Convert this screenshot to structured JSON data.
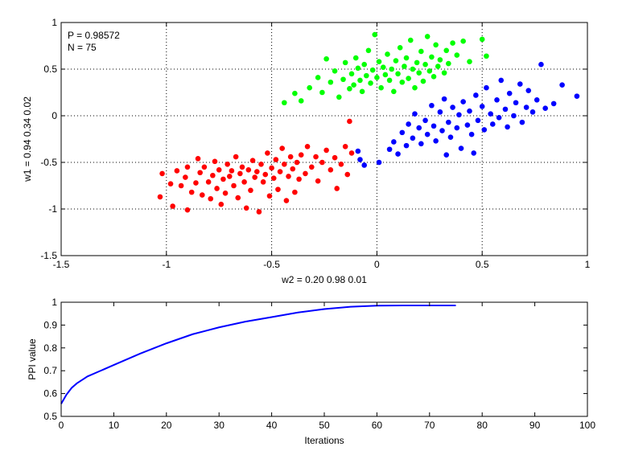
{
  "chart_data": [
    {
      "type": "scatter",
      "title": "",
      "xlabel": "w2 = 0.20  0.98  0.01",
      "ylabel": "w1 = 0.94  0.34  0.02",
      "xlim": [
        -1.5,
        1
      ],
      "ylim": [
        -1.5,
        1
      ],
      "xticks": [
        -1.5,
        -1,
        -0.5,
        0,
        0.5,
        1
      ],
      "yticks": [
        -1.5,
        -1,
        -0.5,
        0,
        0.5,
        1
      ],
      "xtick_labels": [
        "-1.5",
        "-1",
        "-0.5",
        "0",
        "0.5",
        "1"
      ],
      "ytick_labels": [
        "-1.5",
        "-1",
        "-0.5",
        "0",
        "0.5",
        "1"
      ],
      "grid": true,
      "annotations": [
        "P = 0.98572",
        "N = 75"
      ],
      "series": [
        {
          "color": "#ff0000",
          "points": [
            [
              -1.03,
              -0.87
            ],
            [
              -1.02,
              -0.62
            ],
            [
              -0.98,
              -0.73
            ],
            [
              -0.97,
              -0.97
            ],
            [
              -0.95,
              -0.59
            ],
            [
              -0.93,
              -0.75
            ],
            [
              -0.91,
              -0.66
            ],
            [
              -0.9,
              -1.01
            ],
            [
              -0.9,
              -0.55
            ],
            [
              -0.88,
              -0.82
            ],
            [
              -0.86,
              -0.72
            ],
            [
              -0.85,
              -0.46
            ],
            [
              -0.84,
              -0.61
            ],
            [
              -0.83,
              -0.85
            ],
            [
              -0.82,
              -0.55
            ],
            [
              -0.8,
              -0.71
            ],
            [
              -0.79,
              -0.89
            ],
            [
              -0.78,
              -0.64
            ],
            [
              -0.77,
              -0.49
            ],
            [
              -0.76,
              -0.78
            ],
            [
              -0.75,
              -0.58
            ],
            [
              -0.74,
              -0.95
            ],
            [
              -0.73,
              -0.68
            ],
            [
              -0.72,
              -0.83
            ],
            [
              -0.71,
              -0.52
            ],
            [
              -0.7,
              -0.65
            ],
            [
              -0.69,
              -0.59
            ],
            [
              -0.68,
              -0.75
            ],
            [
              -0.67,
              -0.44
            ],
            [
              -0.66,
              -0.88
            ],
            [
              -0.65,
              -0.62
            ],
            [
              -0.64,
              -0.55
            ],
            [
              -0.63,
              -0.71
            ],
            [
              -0.62,
              -0.99
            ],
            [
              -0.61,
              -0.58
            ],
            [
              -0.6,
              -0.8
            ],
            [
              -0.59,
              -0.48
            ],
            [
              -0.58,
              -0.66
            ],
            [
              -0.57,
              -0.6
            ],
            [
              -0.56,
              -1.03
            ],
            [
              -0.55,
              -0.52
            ],
            [
              -0.54,
              -0.71
            ],
            [
              -0.53,
              -0.63
            ],
            [
              -0.52,
              -0.4
            ],
            [
              -0.51,
              -0.86
            ],
            [
              -0.5,
              -0.56
            ],
            [
              -0.49,
              -0.67
            ],
            [
              -0.48,
              -0.47
            ],
            [
              -0.47,
              -0.79
            ],
            [
              -0.46,
              -0.6
            ],
            [
              -0.45,
              -0.35
            ],
            [
              -0.44,
              -0.52
            ],
            [
              -0.43,
              -0.91
            ],
            [
              -0.42,
              -0.65
            ],
            [
              -0.41,
              -0.44
            ],
            [
              -0.4,
              -0.57
            ],
            [
              -0.39,
              -0.82
            ],
            [
              -0.38,
              -0.5
            ],
            [
              -0.37,
              -0.68
            ],
            [
              -0.36,
              -0.42
            ],
            [
              -0.34,
              -0.62
            ],
            [
              -0.33,
              -0.33
            ],
            [
              -0.31,
              -0.55
            ],
            [
              -0.29,
              -0.44
            ],
            [
              -0.28,
              -0.7
            ],
            [
              -0.26,
              -0.5
            ],
            [
              -0.24,
              -0.37
            ],
            [
              -0.22,
              -0.58
            ],
            [
              -0.2,
              -0.45
            ],
            [
              -0.19,
              -0.78
            ],
            [
              -0.17,
              -0.52
            ],
            [
              -0.15,
              -0.33
            ],
            [
              -0.14,
              -0.63
            ],
            [
              -0.12,
              -0.4
            ],
            [
              -0.13,
              -0.06
            ]
          ]
        },
        {
          "color": "#00ff00",
          "points": [
            [
              -0.44,
              0.14
            ],
            [
              -0.39,
              0.24
            ],
            [
              -0.36,
              0.16
            ],
            [
              -0.32,
              0.3
            ],
            [
              -0.28,
              0.41
            ],
            [
              -0.26,
              0.25
            ],
            [
              -0.24,
              0.61
            ],
            [
              -0.22,
              0.36
            ],
            [
              -0.2,
              0.48
            ],
            [
              -0.18,
              0.2
            ],
            [
              -0.16,
              0.39
            ],
            [
              -0.15,
              0.57
            ],
            [
              -0.13,
              0.29
            ],
            [
              -0.12,
              0.45
            ],
            [
              -0.11,
              0.33
            ],
            [
              -0.1,
              0.62
            ],
            [
              -0.09,
              0.51
            ],
            [
              -0.08,
              0.38
            ],
            [
              -0.07,
              0.26
            ],
            [
              -0.06,
              0.55
            ],
            [
              -0.05,
              0.43
            ],
            [
              -0.04,
              0.7
            ],
            [
              -0.03,
              0.35
            ],
            [
              -0.02,
              0.49
            ],
            [
              -0.01,
              0.87
            ],
            [
              0.0,
              0.41
            ],
            [
              0.01,
              0.58
            ],
            [
              0.02,
              0.3
            ],
            [
              0.03,
              0.52
            ],
            [
              0.04,
              0.44
            ],
            [
              0.05,
              0.66
            ],
            [
              0.06,
              0.38
            ],
            [
              0.07,
              0.5
            ],
            [
              0.08,
              0.26
            ],
            [
              0.09,
              0.59
            ],
            [
              0.1,
              0.45
            ],
            [
              0.11,
              0.73
            ],
            [
              0.12,
              0.36
            ],
            [
              0.13,
              0.53
            ],
            [
              0.14,
              0.62
            ],
            [
              0.15,
              0.4
            ],
            [
              0.16,
              0.81
            ],
            [
              0.17,
              0.5
            ],
            [
              0.18,
              0.3
            ],
            [
              0.19,
              0.57
            ],
            [
              0.2,
              0.46
            ],
            [
              0.21,
              0.69
            ],
            [
              0.22,
              0.37
            ],
            [
              0.23,
              0.55
            ],
            [
              0.24,
              0.85
            ],
            [
              0.25,
              0.48
            ],
            [
              0.26,
              0.63
            ],
            [
              0.27,
              0.42
            ],
            [
              0.28,
              0.76
            ],
            [
              0.29,
              0.53
            ],
            [
              0.3,
              0.6
            ],
            [
              0.32,
              0.46
            ],
            [
              0.33,
              0.7
            ],
            [
              0.34,
              0.56
            ],
            [
              0.36,
              0.78
            ],
            [
              0.38,
              0.65
            ],
            [
              0.41,
              0.8
            ],
            [
              0.44,
              0.58
            ],
            [
              0.5,
              0.82
            ],
            [
              0.52,
              0.64
            ]
          ]
        },
        {
          "color": "#0000ff",
          "points": [
            [
              -0.09,
              -0.38
            ],
            [
              -0.08,
              -0.47
            ],
            [
              -0.06,
              -0.53
            ],
            [
              0.01,
              -0.5
            ],
            [
              0.06,
              -0.36
            ],
            [
              0.08,
              -0.28
            ],
            [
              0.1,
              -0.41
            ],
            [
              0.12,
              -0.18
            ],
            [
              0.14,
              -0.32
            ],
            [
              0.15,
              -0.09
            ],
            [
              0.17,
              -0.24
            ],
            [
              0.18,
              0.02
            ],
            [
              0.2,
              -0.13
            ],
            [
              0.21,
              -0.3
            ],
            [
              0.23,
              -0.05
            ],
            [
              0.24,
              -0.2
            ],
            [
              0.26,
              0.11
            ],
            [
              0.27,
              -0.11
            ],
            [
              0.28,
              -0.27
            ],
            [
              0.3,
              0.04
            ],
            [
              0.31,
              -0.16
            ],
            [
              0.32,
              0.18
            ],
            [
              0.34,
              -0.07
            ],
            [
              0.35,
              -0.23
            ],
            [
              0.36,
              0.09
            ],
            [
              0.38,
              -0.13
            ],
            [
              0.39,
              0.01
            ],
            [
              0.4,
              -0.35
            ],
            [
              0.41,
              0.15
            ],
            [
              0.43,
              -0.1
            ],
            [
              0.44,
              0.05
            ],
            [
              0.45,
              -0.2
            ],
            [
              0.47,
              0.22
            ],
            [
              0.48,
              -0.05
            ],
            [
              0.5,
              0.1
            ],
            [
              0.51,
              -0.15
            ],
            [
              0.52,
              0.3
            ],
            [
              0.54,
              0.02
            ],
            [
              0.55,
              -0.09
            ],
            [
              0.57,
              0.17
            ],
            [
              0.58,
              -0.02
            ],
            [
              0.59,
              0.38
            ],
            [
              0.61,
              0.07
            ],
            [
              0.62,
              -0.12
            ],
            [
              0.63,
              0.24
            ],
            [
              0.65,
              0.0
            ],
            [
              0.66,
              0.14
            ],
            [
              0.68,
              0.34
            ],
            [
              0.69,
              -0.07
            ],
            [
              0.71,
              0.09
            ],
            [
              0.72,
              0.27
            ],
            [
              0.74,
              0.04
            ],
            [
              0.76,
              0.17
            ],
            [
              0.78,
              0.55
            ],
            [
              0.8,
              0.08
            ],
            [
              0.84,
              0.13
            ],
            [
              0.88,
              0.33
            ],
            [
              0.95,
              0.21
            ],
            [
              0.33,
              -0.42
            ],
            [
              0.46,
              -0.4
            ]
          ]
        }
      ]
    },
    {
      "type": "line",
      "title": "",
      "xlabel": "Iterations",
      "ylabel": "PPI value",
      "xlim": [
        0,
        100
      ],
      "ylim": [
        0.5,
        1
      ],
      "xticks": [
        0,
        10,
        20,
        30,
        40,
        50,
        60,
        70,
        80,
        90,
        100
      ],
      "yticks": [
        0.5,
        0.6,
        0.7,
        0.8,
        0.9,
        1
      ],
      "xtick_labels": [
        "0",
        "10",
        "20",
        "30",
        "40",
        "50",
        "60",
        "70",
        "80",
        "90",
        "100"
      ],
      "ytick_labels": [
        "0.5",
        "0.6",
        "0.7",
        "0.8",
        "0.9",
        "1"
      ],
      "grid": false,
      "series": [
        {
          "color": "#0000ff",
          "x": [
            0,
            1,
            2,
            3,
            4,
            5,
            7,
            10,
            15,
            20,
            25,
            30,
            35,
            40,
            45,
            50,
            55,
            60,
            65,
            70,
            75
          ],
          "y": [
            0.555,
            0.595,
            0.625,
            0.645,
            0.66,
            0.675,
            0.695,
            0.725,
            0.775,
            0.82,
            0.86,
            0.89,
            0.915,
            0.935,
            0.955,
            0.97,
            0.98,
            0.985,
            0.986,
            0.986,
            0.986
          ]
        }
      ]
    }
  ]
}
